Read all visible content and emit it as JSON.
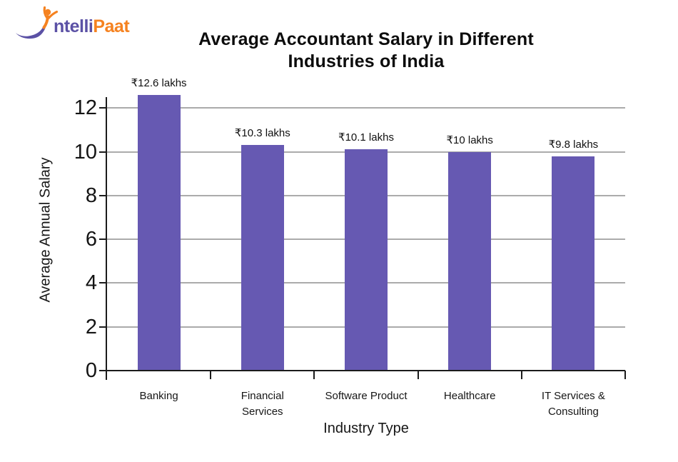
{
  "logo": {
    "brand_purple_text": "ntelli",
    "brand_orange_text": "Paat",
    "purple": "#5B51A5",
    "orange": "#F58220"
  },
  "header": {
    "title_lines": [
      "Average Accountant Salary in Different",
      "Industries of India"
    ]
  },
  "chart_data": {
    "type": "bar",
    "title": "Average Accountant Salary in Different Industries of India",
    "categories": [
      "Banking",
      "Financial Services",
      "Software Product",
      "Healthcare",
      "IT Services & Consulting"
    ],
    "values": [
      12.6,
      10.3,
      10.1,
      10,
      9.8
    ],
    "bar_labels": [
      "₹12.6 lakhs",
      "₹10.3 lakhs",
      "₹10.1 lakhs",
      "₹10 lakhs",
      "₹9.8 lakhs"
    ],
    "xlabel": "Industry Type",
    "ylabel": "Average Annual Salary",
    "yticks": [
      0,
      2,
      4,
      6,
      8,
      10,
      12
    ],
    "ylim": [
      0,
      13
    ],
    "grid": true,
    "legend": false,
    "bar_color": "#6659B2",
    "gridline_color": "#ABABAB",
    "axis_color": "#1B1B1B",
    "text_color": "#111111"
  }
}
